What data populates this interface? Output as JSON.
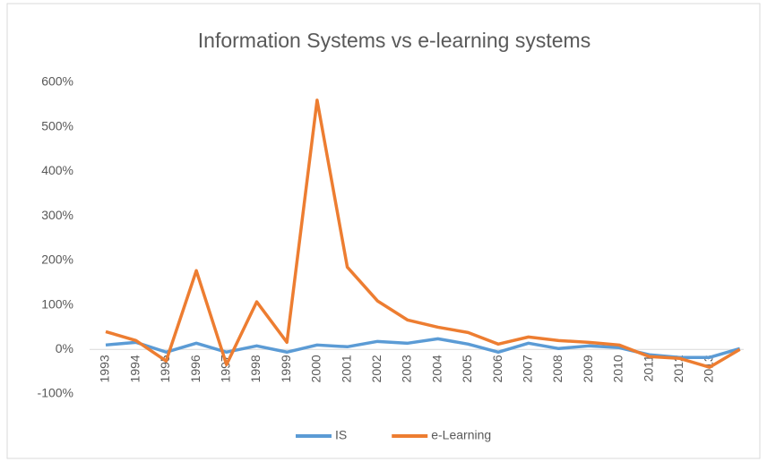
{
  "chart_data": {
    "type": "line",
    "title": "Information Systems vs e-learning systems",
    "categories": [
      "1993",
      "1994",
      "1995",
      "1996",
      "1997",
      "1998",
      "1999",
      "2000",
      "2001",
      "2002",
      "2003",
      "2004",
      "2005",
      "2006",
      "2007",
      "2008",
      "2009",
      "2010",
      "2011",
      "2012",
      "2013",
      null
    ],
    "series": [
      {
        "name": "IS",
        "color": "#5b9bd5",
        "values": [
          10,
          16,
          -6,
          14,
          -6,
          8,
          -6,
          10,
          6,
          18,
          14,
          24,
          12,
          -6,
          14,
          2,
          8,
          4,
          -12,
          -18,
          -18,
          2
        ]
      },
      {
        "name": "e-Learning",
        "color": "#ed7d31",
        "values": [
          40,
          20,
          -26,
          177,
          -34,
          107,
          16,
          560,
          185,
          109,
          66,
          50,
          38,
          12,
          28,
          20,
          16,
          10,
          -16,
          -20,
          -40,
          0
        ]
      }
    ],
    "ylim": [
      -100,
      600
    ],
    "yticks": [
      {
        "value": -100,
        "label": "-100%"
      },
      {
        "value": 0,
        "label": "0%"
      },
      {
        "value": 100,
        "label": "100%"
      },
      {
        "value": 200,
        "label": "200%"
      },
      {
        "value": 300,
        "label": "300%"
      },
      {
        "value": 400,
        "label": "400%"
      },
      {
        "value": 500,
        "label": "500%"
      },
      {
        "value": 600,
        "label": "600%"
      }
    ],
    "grid": false,
    "legend": "bottom"
  }
}
